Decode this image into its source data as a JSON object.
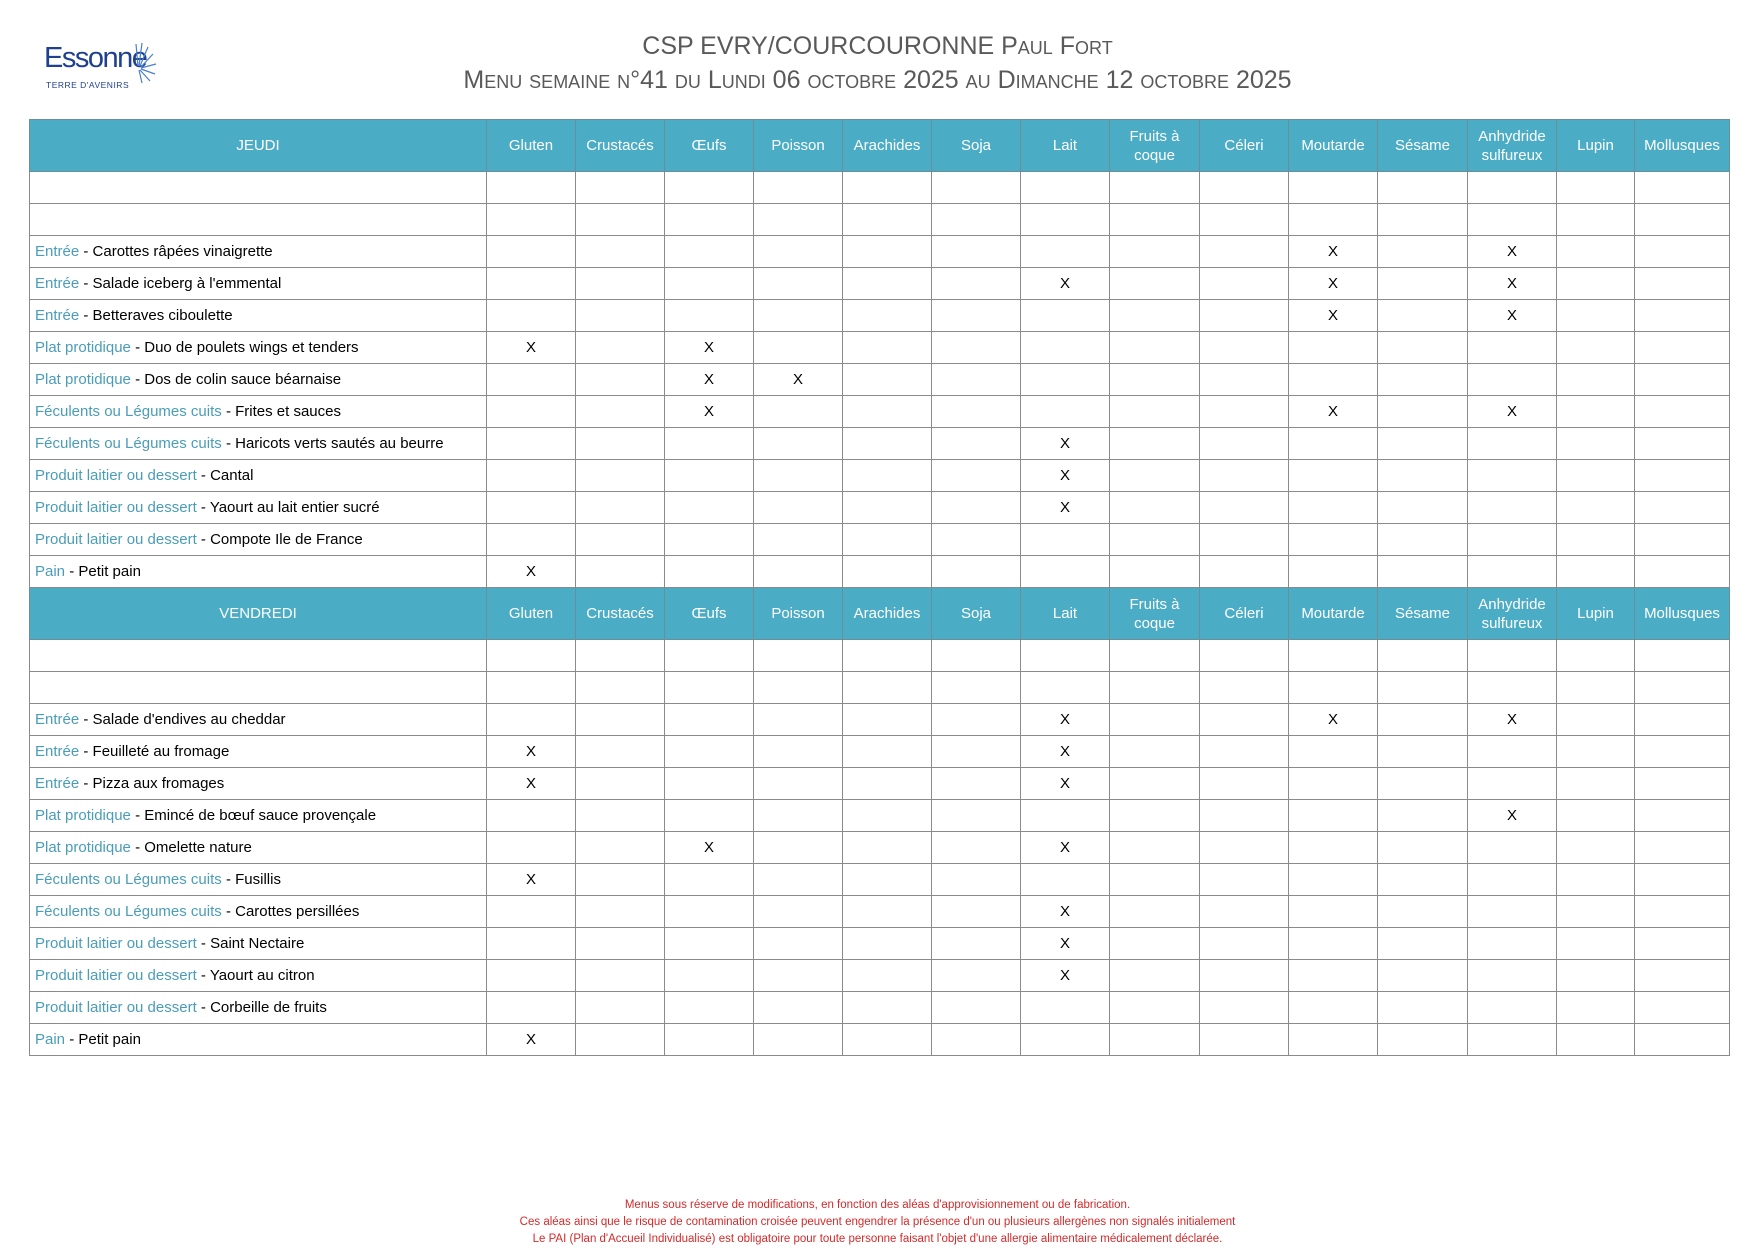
{
  "logo": {
    "name": "Essonne",
    "tagline": "TERRE D'AVENIRS",
    "color": "#1f3f8f"
  },
  "header": {
    "title": "CSP EVRY/COURCOURONNE Paul Fort",
    "subtitle": "Menu semaine n°41 du Lundi 06 octobre 2025 au Dimanche 12 octobre 2025"
  },
  "colors": {
    "header_bg": "#4bacc6",
    "category": "#4a9db8",
    "footer": "#d42a2a"
  },
  "allergens": [
    "Gluten",
    "Crustacés",
    "Œufs",
    "Poisson",
    "Arachides",
    "Soja",
    "Lait",
    "Fruits à coque",
    "Céleri",
    "Moutarde",
    "Sésame",
    "Anhydride sulfureux",
    "Lupin",
    "Mollusques"
  ],
  "days": [
    {
      "day": "JEUDI",
      "rows": [
        {
          "category": "",
          "dish": "",
          "marks": []
        },
        {
          "category": "",
          "dish": "",
          "marks": []
        },
        {
          "category": "Entrée",
          "dish": "Carottes râpées vinaigrette",
          "marks": [
            "Moutarde",
            "Anhydride sulfureux"
          ]
        },
        {
          "category": "Entrée",
          "dish": "Salade iceberg à l'emmental",
          "marks": [
            "Lait",
            "Moutarde",
            "Anhydride sulfureux"
          ]
        },
        {
          "category": "Entrée",
          "dish": "Betteraves ciboulette",
          "marks": [
            "Moutarde",
            "Anhydride sulfureux"
          ]
        },
        {
          "category": "Plat protidique",
          "dish": "Duo de poulets wings et tenders",
          "marks": [
            "Gluten",
            "Œufs"
          ]
        },
        {
          "category": "Plat protidique",
          "dish": "Dos de colin sauce béarnaise",
          "marks": [
            "Œufs",
            "Poisson"
          ]
        },
        {
          "category": "Féculents ou Légumes cuits",
          "dish": "Frites et sauces",
          "marks": [
            "Œufs",
            "Moutarde",
            "Anhydride sulfureux"
          ]
        },
        {
          "category": "Féculents ou Légumes cuits",
          "dish": "Haricots verts sautés au beurre",
          "marks": [
            "Lait"
          ]
        },
        {
          "category": "Produit laitier ou dessert",
          "dish": "Cantal",
          "marks": [
            "Lait"
          ]
        },
        {
          "category": "Produit laitier ou dessert",
          "dish": "Yaourt au lait entier sucré",
          "marks": [
            "Lait"
          ]
        },
        {
          "category": "Produit laitier ou dessert",
          "dish": "Compote Ile de France",
          "marks": []
        },
        {
          "category": "Pain",
          "dish": "Petit pain",
          "marks": [
            "Gluten"
          ]
        }
      ]
    },
    {
      "day": "VENDREDI",
      "rows": [
        {
          "category": "",
          "dish": "",
          "marks": []
        },
        {
          "category": "",
          "dish": "",
          "marks": []
        },
        {
          "category": "Entrée",
          "dish": "Salade d'endives au cheddar",
          "marks": [
            "Lait",
            "Moutarde",
            "Anhydride sulfureux"
          ]
        },
        {
          "category": "Entrée",
          "dish": "Feuilleté au fromage",
          "marks": [
            "Gluten",
            "Lait"
          ]
        },
        {
          "category": "Entrée",
          "dish": "Pizza aux fromages",
          "marks": [
            "Gluten",
            "Lait"
          ]
        },
        {
          "category": "Plat protidique",
          "dish": "Emincé de bœuf sauce provençale",
          "marks": [
            "Anhydride sulfureux"
          ]
        },
        {
          "category": "Plat protidique",
          "dish": "Omelette nature",
          "marks": [
            "Œufs",
            "Lait"
          ]
        },
        {
          "category": "Féculents ou Légumes cuits",
          "dish": "Fusillis",
          "marks": [
            "Gluten"
          ]
        },
        {
          "category": "Féculents ou Légumes cuits",
          "dish": "Carottes persillées",
          "marks": [
            "Lait"
          ]
        },
        {
          "category": "Produit laitier ou dessert",
          "dish": "Saint Nectaire",
          "marks": [
            "Lait"
          ]
        },
        {
          "category": "Produit laitier ou dessert",
          "dish": "Yaourt au citron",
          "marks": [
            "Lait"
          ]
        },
        {
          "category": "Produit laitier ou dessert",
          "dish": "Corbeille de fruits",
          "marks": []
        },
        {
          "category": "Pain",
          "dish": "Petit pain",
          "marks": [
            "Gluten"
          ]
        }
      ]
    }
  ],
  "mark_symbol": "X",
  "separator": " - ",
  "footer": [
    "Menus sous réserve de modifications, en fonction des aléas d'approvisionnement ou de fabrication.",
    "Ces aléas ainsi que le risque de contamination croisée peuvent engendrer la présence d'un ou plusieurs allergènes non signalés initialement",
    "Le PAI (Plan d'Accueil Individualisé) est obligatoire pour toute personne faisant l'objet d'une allergie alimentaire médicalement déclarée."
  ]
}
